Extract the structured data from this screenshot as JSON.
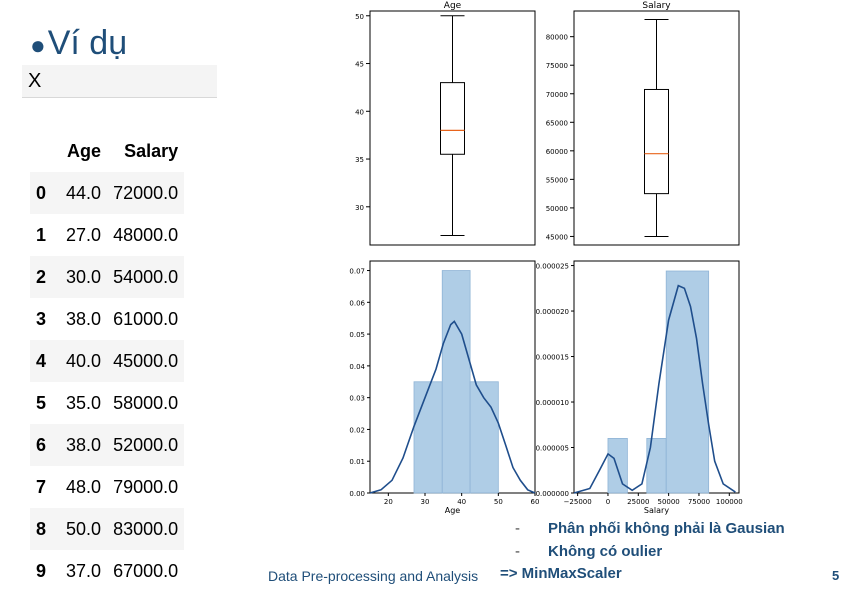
{
  "slide": {
    "title": "Ví dụ",
    "variable_name": "X",
    "footer": "Data Pre-processing and Analysis",
    "page_number": "5",
    "notes": [
      {
        "dash": "-",
        "text": "Phân phối không phải là Gausian"
      },
      {
        "dash": "-",
        "text": "Không có oulier"
      },
      {
        "dash": "",
        "text": "=> MinMaxScaler"
      }
    ]
  },
  "dataframe": {
    "columns": [
      "",
      "Age",
      "Salary"
    ],
    "rows": [
      [
        "0",
        "44.0",
        "72000.0"
      ],
      [
        "1",
        "27.0",
        "48000.0"
      ],
      [
        "2",
        "30.0",
        "54000.0"
      ],
      [
        "3",
        "38.0",
        "61000.0"
      ],
      [
        "4",
        "40.0",
        "45000.0"
      ],
      [
        "5",
        "35.0",
        "58000.0"
      ],
      [
        "6",
        "38.0",
        "52000.0"
      ],
      [
        "7",
        "48.0",
        "79000.0"
      ],
      [
        "8",
        "50.0",
        "83000.0"
      ],
      [
        "9",
        "37.0",
        "67000.0"
      ]
    ]
  },
  "chart_data": [
    {
      "type": "boxplot",
      "title": "Age",
      "ylim": [
        26,
        50.5
      ],
      "yticks": [
        30,
        35,
        40,
        45,
        50
      ],
      "stats": {
        "min": 27,
        "q1": 35.5,
        "median": 38,
        "q3": 43,
        "max": 50
      },
      "colors": {
        "box": "#000000",
        "median": "#e8641c"
      }
    },
    {
      "type": "boxplot",
      "title": "Salary",
      "ylim": [
        43500,
        84500
      ],
      "yticks": [
        45000,
        50000,
        55000,
        60000,
        65000,
        70000,
        75000,
        80000
      ],
      "stats": {
        "min": 45000,
        "q1": 52500,
        "median": 59500,
        "q3": 70750,
        "max": 83000
      },
      "colors": {
        "box": "#000000",
        "median": "#e8641c"
      }
    },
    {
      "type": "histogram",
      "xlabel": "Age",
      "xlim": [
        15,
        60
      ],
      "ylim": [
        0,
        0.073
      ],
      "xticks": [
        20,
        30,
        40,
        50,
        60
      ],
      "yticks": [
        0,
        0.01,
        0.02,
        0.03,
        0.04,
        0.05,
        0.06,
        0.07
      ],
      "ytick_labels": [
        "0.00",
        "0.01",
        "0.02",
        "0.03",
        "0.04",
        "0.05",
        "0.06",
        "0.07"
      ],
      "bins": [
        {
          "x0": 27,
          "x1": 34.7,
          "height": 0.035
        },
        {
          "x0": 34.7,
          "x1": 42.3,
          "height": 0.07
        },
        {
          "x0": 42.3,
          "x1": 50,
          "height": 0.035
        }
      ],
      "kde": [
        [
          15,
          0.0
        ],
        [
          18,
          0.001
        ],
        [
          21,
          0.004
        ],
        [
          24,
          0.011
        ],
        [
          27,
          0.021
        ],
        [
          30,
          0.03
        ],
        [
          33,
          0.039
        ],
        [
          35,
          0.047
        ],
        [
          37,
          0.053
        ],
        [
          38,
          0.054
        ],
        [
          40,
          0.05
        ],
        [
          42,
          0.042
        ],
        [
          44,
          0.034
        ],
        [
          46,
          0.03
        ],
        [
          48,
          0.027
        ],
        [
          50,
          0.022
        ],
        [
          52,
          0.015
        ],
        [
          54,
          0.008
        ],
        [
          56,
          0.004
        ],
        [
          58,
          0.001
        ],
        [
          60,
          0.0
        ]
      ],
      "colors": {
        "bar": "#a6c8e3",
        "bar_edge": "#8fb4d6",
        "kde": "#1f4e8c"
      }
    },
    {
      "type": "histogram",
      "xlabel": "Salary",
      "xlim": [
        -28000,
        108000
      ],
      "ylim": [
        0,
        2.55e-05
      ],
      "xticks": [
        -25000,
        0,
        25000,
        50000,
        75000,
        100000
      ],
      "xtick_labels": [
        "−25000",
        "0",
        "25000",
        "50000",
        "75000",
        "100000"
      ],
      "yticks": [
        0,
        5e-06,
        1e-05,
        1.5e-05,
        2e-05,
        2.5e-05
      ],
      "ytick_labels": [
        "0.000000",
        "0.000005",
        "0.000010",
        "0.000015",
        "0.000020",
        "0.000025"
      ],
      "bins": [
        {
          "x0": 0,
          "x1": 16000,
          "height": 6e-06
        },
        {
          "x0": 32000,
          "x1": 48000,
          "height": 6e-06
        },
        {
          "x0": 48000,
          "x1": 83000,
          "height": 2.44e-05
        }
      ],
      "kde": [
        [
          -28000,
          0.0
        ],
        [
          -15000,
          5e-07
        ],
        [
          -7000,
          2.5e-06
        ],
        [
          0,
          4.3e-06
        ],
        [
          5000,
          3.8e-06
        ],
        [
          12000,
          1e-06
        ],
        [
          20000,
          3e-07
        ],
        [
          28000,
          1e-06
        ],
        [
          35000,
          5e-06
        ],
        [
          42000,
          1.2e-05
        ],
        [
          50000,
          1.9e-05
        ],
        [
          58000,
          2.28e-05
        ],
        [
          63000,
          2.25e-05
        ],
        [
          68000,
          2.05e-05
        ],
        [
          73000,
          1.7e-05
        ],
        [
          78000,
          1.2e-05
        ],
        [
          83000,
          7.5e-06
        ],
        [
          88000,
          3.5e-06
        ],
        [
          95000,
          1e-06
        ],
        [
          105000,
          1e-07
        ]
      ],
      "colors": {
        "bar": "#a6c8e3",
        "bar_edge": "#8fb4d6",
        "kde": "#1f4e8c"
      }
    }
  ]
}
